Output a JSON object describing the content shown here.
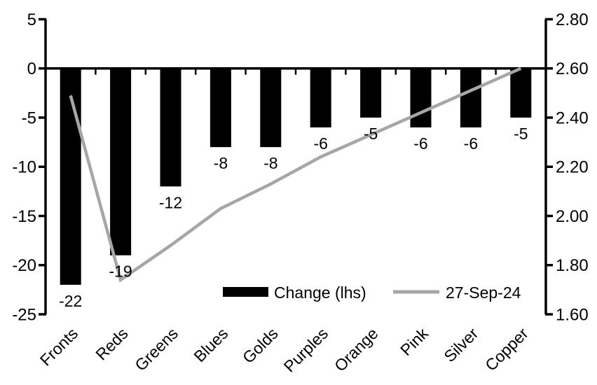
{
  "chart_data": {
    "type": "combo-bar-line",
    "categories": [
      "Fronts",
      "Reds",
      "Greens",
      "Blues",
      "Golds",
      "Purples",
      "Orange",
      "Pink",
      "Silver",
      "Copper"
    ],
    "series": [
      {
        "name": "Change (lhs)",
        "type": "bar",
        "axis": "left",
        "color": "#000000",
        "values": [
          -22,
          -19,
          -12,
          -8,
          -8,
          -6,
          -5,
          -6,
          -6,
          -5
        ],
        "data_labels": [
          "-22",
          "-19",
          "-12",
          "-8",
          "-8",
          "-6",
          "-5",
          "-6",
          "-6",
          "-5"
        ]
      },
      {
        "name": "27-Sep-24",
        "type": "line",
        "axis": "right",
        "color": "#a6a6a6",
        "values": [
          2.49,
          1.74,
          1.88,
          2.03,
          2.13,
          2.24,
          2.33,
          2.42,
          2.51,
          2.6
        ]
      }
    ],
    "left_axis": {
      "min": -25,
      "max": 5,
      "tick_values": [
        5,
        0,
        -5,
        -10,
        -15,
        -20,
        -25
      ],
      "tick_labels": [
        "5",
        "0",
        "-5",
        "-10",
        "-15",
        "-20",
        "-25"
      ]
    },
    "right_axis": {
      "min": 1.6,
      "max": 2.8,
      "tick_values": [
        2.8,
        2.6,
        2.4,
        2.2,
        2.0,
        1.8,
        1.6
      ],
      "tick_labels": [
        "2.80",
        "2.60",
        "2.40",
        "2.20",
        "2.00",
        "1.80",
        "1.60"
      ]
    },
    "legend": {
      "position": "bottom-inside",
      "entries": [
        "Change (lhs)",
        "27-Sep-24"
      ]
    },
    "grid": false,
    "colors": {
      "background": "#ffffff",
      "axis": "#000000",
      "bar": "#000000",
      "line": "#a6a6a6"
    }
  }
}
